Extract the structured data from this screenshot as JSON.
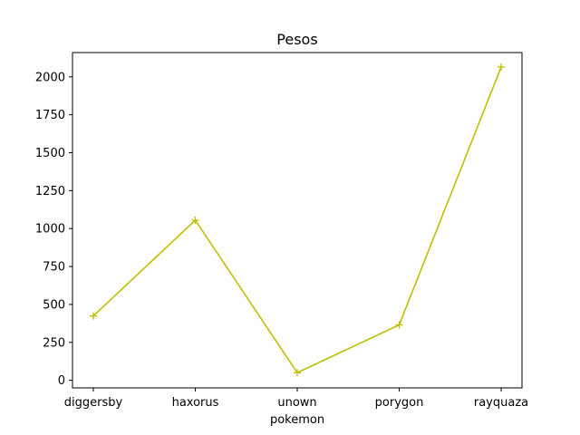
{
  "chart_data": {
    "type": "line",
    "title": "Pesos",
    "xlabel": "pokemon",
    "ylabel": "",
    "categories": [
      "diggersby",
      "haxorus",
      "unown",
      "porygon",
      "rayquaza"
    ],
    "series": [
      {
        "values": [
          424,
          1055,
          50,
          365,
          2065
        ],
        "color": "#bfbf00",
        "marker": "plus"
      }
    ],
    "ylim": [
      -50,
      2160
    ],
    "yticks": [
      0,
      250,
      500,
      750,
      1000,
      1250,
      1500,
      1750,
      2000
    ],
    "grid": false
  }
}
